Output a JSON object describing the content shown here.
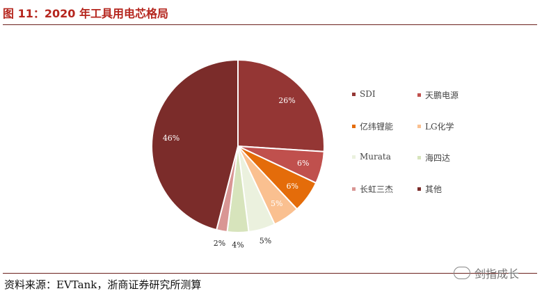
{
  "header": {
    "title": "图 11：2020 年工具用电芯格局"
  },
  "footer": {
    "source": "资料来源：EVTank，浙商证券研究所测算",
    "watermark": "剑指成长"
  },
  "chart_data": {
    "type": "pie",
    "categories": [
      "SDI",
      "天鹏电源",
      "亿纬锂能",
      "LG化学",
      "Murata",
      "海四达",
      "长虹三杰",
      "其他"
    ],
    "values": [
      26,
      6,
      6,
      5,
      5,
      4,
      2,
      46
    ],
    "labels": [
      "26%",
      "6%",
      "6%",
      "5%",
      "5%",
      "4%",
      "2%",
      "46%"
    ],
    "colors": [
      "#943634",
      "#c0504d",
      "#e46c0a",
      "#fac090",
      "#ebf1de",
      "#d7e4bc",
      "#d99694",
      "#7b2c2a"
    ],
    "legend_position": "right"
  }
}
